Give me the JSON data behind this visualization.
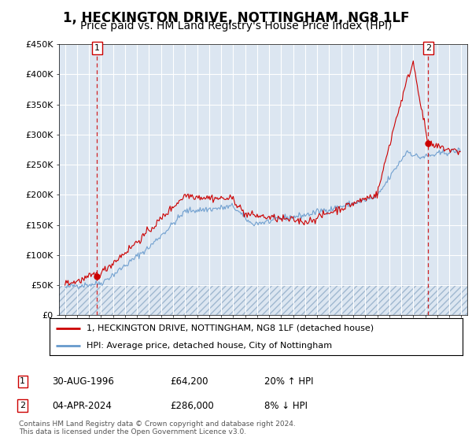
{
  "title": "1, HECKINGTON DRIVE, NOTTINGHAM, NG8 1LF",
  "subtitle": "Price paid vs. HM Land Registry's House Price Index (HPI)",
  "plot_bg": "#dce6f1",
  "hatch_color": "#b8c8dc",
  "grid_color": "#ffffff",
  "ylim": [
    0,
    450000
  ],
  "yticks": [
    0,
    50000,
    100000,
    150000,
    200000,
    250000,
    300000,
    350000,
    400000,
    450000
  ],
  "ytick_labels": [
    "£0",
    "£50K",
    "£100K",
    "£150K",
    "£200K",
    "£250K",
    "£300K",
    "£350K",
    "£400K",
    "£450K"
  ],
  "xlim_start": 1993.5,
  "xlim_end": 2027.5,
  "xticks": [
    1994,
    1995,
    1996,
    1997,
    1998,
    1999,
    2000,
    2001,
    2002,
    2003,
    2004,
    2005,
    2006,
    2007,
    2008,
    2009,
    2010,
    2011,
    2012,
    2013,
    2014,
    2015,
    2016,
    2017,
    2018,
    2019,
    2020,
    2021,
    2022,
    2023,
    2024,
    2025,
    2026,
    2027
  ],
  "marker1_x": 1996.67,
  "marker1_y": 64200,
  "marker2_x": 2024.25,
  "marker2_y": 286000,
  "red_line_color": "#cc0000",
  "blue_line_color": "#6699cc",
  "dashed_line_color": "#cc0000",
  "legend_label_red": "1, HECKINGTON DRIVE, NOTTINGHAM, NG8 1LF (detached house)",
  "legend_label_blue": "HPI: Average price, detached house, City of Nottingham",
  "annotation1_date": "30-AUG-1996",
  "annotation1_price": "£64,200",
  "annotation1_hpi": "20% ↑ HPI",
  "annotation2_date": "04-APR-2024",
  "annotation2_price": "£286,000",
  "annotation2_hpi": "8% ↓ HPI",
  "footer": "Contains HM Land Registry data © Crown copyright and database right 2024.\nThis data is licensed under the Open Government Licence v3.0.",
  "hatch_threshold": 50000,
  "title_fontsize": 12,
  "subtitle_fontsize": 10
}
